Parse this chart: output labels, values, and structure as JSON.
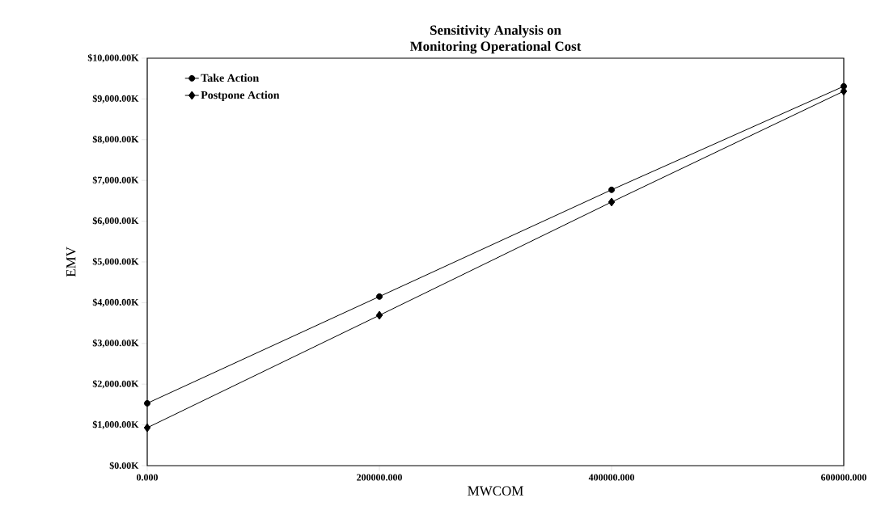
{
  "chart_data": {
    "type": "line",
    "title": "Sensitivity Analysis on\nMonitoring Operational Cost",
    "xlabel": "MWCOM",
    "ylabel": "EMV",
    "x": [
      0,
      200000,
      400000,
      600000
    ],
    "series": [
      {
        "name": "Take Action",
        "color": "#000000",
        "marker": "circle",
        "values": [
          1530,
          4150,
          6770,
          9310
        ]
      },
      {
        "name": "Postpone Action",
        "color": "#000000",
        "marker": "diamond",
        "values": [
          930,
          3690,
          6470,
          9190
        ]
      }
    ],
    "xlim": [
      0,
      600000
    ],
    "xticks": [
      {
        "value": 0,
        "label": "0.000"
      },
      {
        "value": 200000,
        "label": "200000.000"
      },
      {
        "value": 400000,
        "label": "400000.000"
      },
      {
        "value": 600000,
        "label": "600000.000"
      }
    ],
    "ylim": [
      0,
      10000
    ],
    "yticks": [
      {
        "value": 0,
        "label": "$0.00K"
      },
      {
        "value": 1000,
        "label": "$1,000.00K"
      },
      {
        "value": 2000,
        "label": "$2,000.00K"
      },
      {
        "value": 3000,
        "label": "$3,000.00K"
      },
      {
        "value": 4000,
        "label": "$4,000.00K"
      },
      {
        "value": 5000,
        "label": "$5,000.00K"
      },
      {
        "value": 6000,
        "label": "$6,000.00K"
      },
      {
        "value": 7000,
        "label": "$7,000.00K"
      },
      {
        "value": 8000,
        "label": "$8,000.00K"
      },
      {
        "value": 9000,
        "label": "$9,000.00K"
      },
      {
        "value": 10000,
        "label": "$10,000.00K"
      }
    ],
    "grid": false,
    "legend": "top left",
    "line_style": "solid"
  }
}
